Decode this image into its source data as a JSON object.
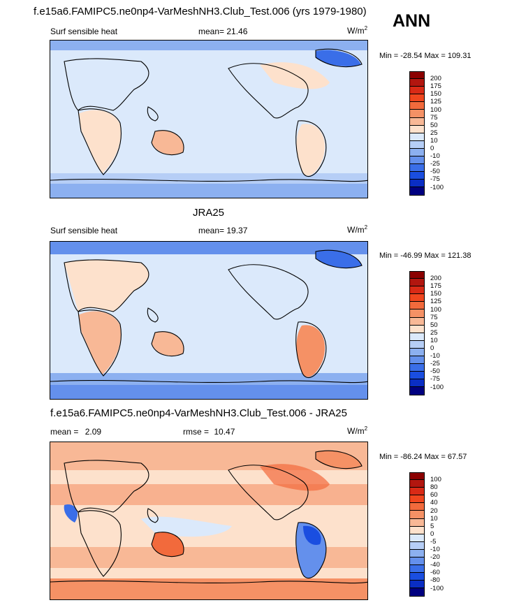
{
  "season": "ANN",
  "panels": [
    {
      "title": "f.e15a6.FAMIPC5.ne0np4-VarMeshNH3.Club_Test.006 (yrs 1979-1980)",
      "left_label": "Surf sensible heat",
      "mean_label": "mean=",
      "mean_value": "21.46",
      "units": "W/m",
      "units_sup": "2",
      "minmax": "Min = -28.54 Max = 109.31",
      "levels": [
        "200",
        "175",
        "150",
        "125",
        "100",
        "75",
        "50",
        "25",
        "10",
        "0",
        "-10",
        "-25",
        "-50",
        "-75",
        "-100"
      ],
      "colors": [
        "#8b0000",
        "#b2160f",
        "#d92a16",
        "#f0461e",
        "#f26a3c",
        "#f59165",
        "#f8b896",
        "#fde1cc",
        "#dbe9fb",
        "#b6cef6",
        "#8cb0f0",
        "#6490ec",
        "#3a6ee8",
        "#1a4ee0",
        "#0a2ec4",
        "#000080"
      ]
    },
    {
      "title": "JRA25",
      "left_label": "Surf sensible heat",
      "mean_label": "mean=",
      "mean_value": "19.37",
      "units": "W/m",
      "units_sup": "2",
      "minmax": "Min = -46.99 Max = 121.38",
      "levels": [
        "200",
        "175",
        "150",
        "125",
        "100",
        "75",
        "50",
        "25",
        "10",
        "0",
        "-10",
        "-25",
        "-50",
        "-75",
        "-100"
      ],
      "colors": [
        "#8b0000",
        "#b2160f",
        "#d92a16",
        "#f0461e",
        "#f26a3c",
        "#f59165",
        "#f8b896",
        "#fde1cc",
        "#dbe9fb",
        "#b6cef6",
        "#8cb0f0",
        "#6490ec",
        "#3a6ee8",
        "#1a4ee0",
        "#0a2ec4",
        "#000080"
      ]
    },
    {
      "title": "f.e15a6.FAMIPC5.ne0np4-VarMeshNH3.Club_Test.006 - JRA25",
      "left_label": "mean =",
      "mean_label": "",
      "mean_value": "2.09",
      "rmse_label": "rmse =",
      "rmse_value": "10.47",
      "units": "W/m",
      "units_sup": "2",
      "minmax": "Min = -86.24 Max = 67.57",
      "levels": [
        "100",
        "80",
        "60",
        "40",
        "20",
        "10",
        "5",
        "0",
        "-5",
        "-10",
        "-20",
        "-40",
        "-60",
        "-80",
        "-100"
      ],
      "colors": [
        "#8b0000",
        "#b2160f",
        "#d92a16",
        "#f0461e",
        "#f26a3c",
        "#f59165",
        "#f8b896",
        "#fde1cc",
        "#dbe9fb",
        "#b6cef6",
        "#8cb0f0",
        "#6490ec",
        "#3a6ee8",
        "#1a4ee0",
        "#0a2ec4",
        "#000080"
      ]
    }
  ]
}
